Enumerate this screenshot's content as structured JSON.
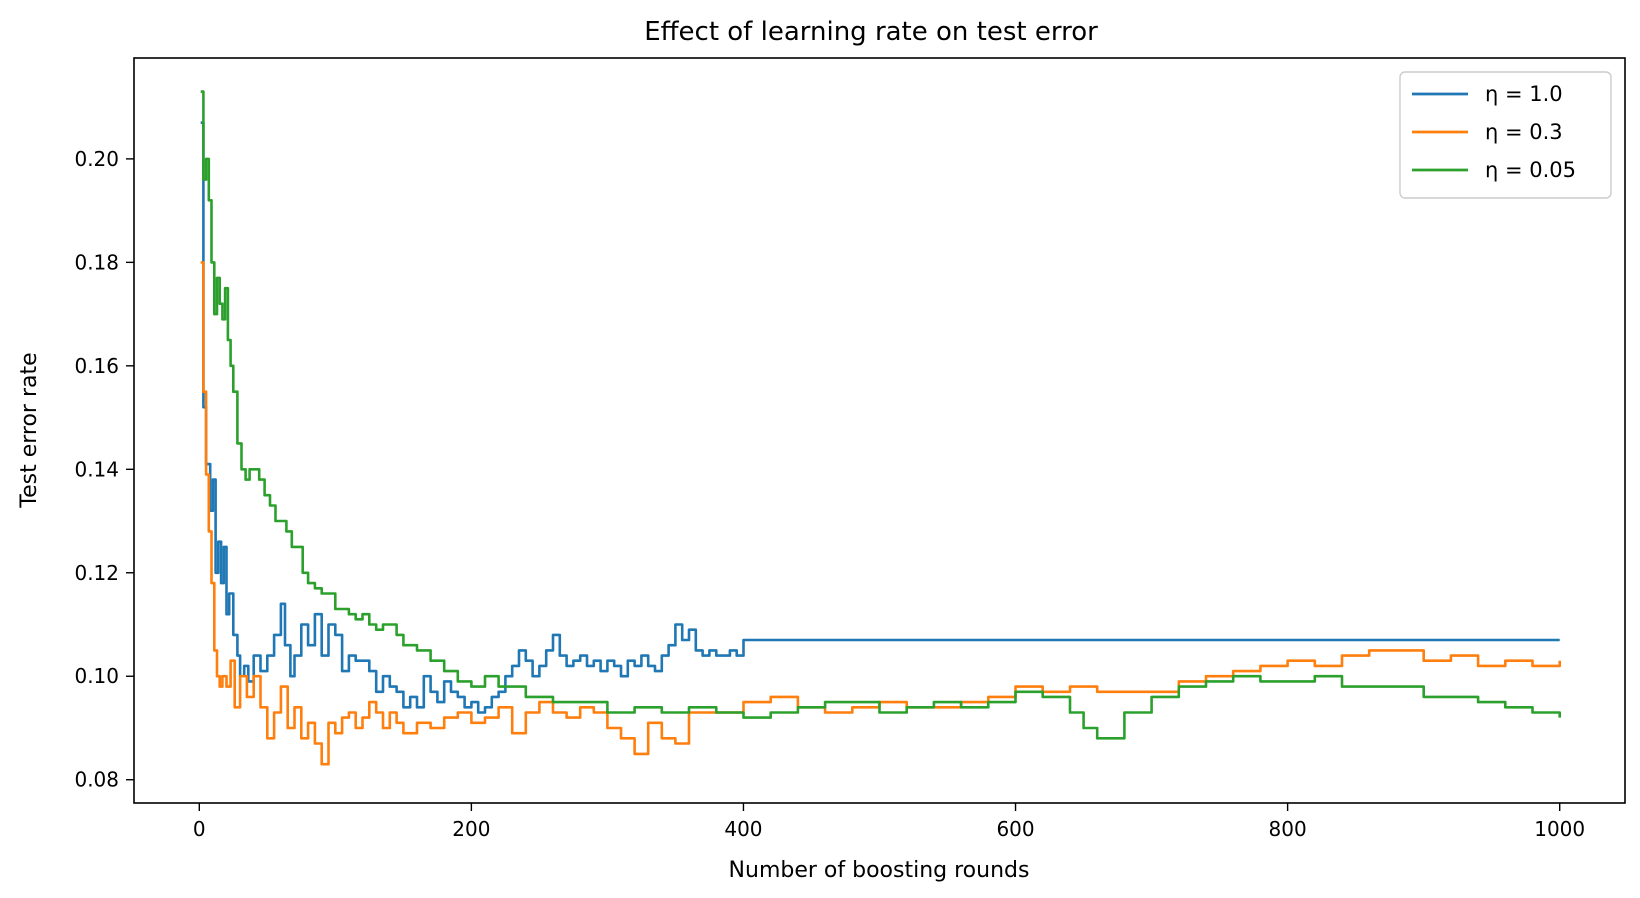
{
  "chart_data": {
    "type": "line",
    "title": "Effect of learning rate on test error",
    "xlabel": "Number of boosting rounds",
    "ylabel": "Test error rate",
    "xlim": [
      -48,
      1048
    ],
    "ylim": [
      0.0755,
      0.2195
    ],
    "xticks": [
      0,
      200,
      400,
      600,
      800,
      1000
    ],
    "yticks": [
      0.08,
      0.1,
      0.12,
      0.14,
      0.16,
      0.18,
      0.2
    ],
    "ytick_labels": [
      "0.08",
      "0.10",
      "0.12",
      "0.14",
      "0.16",
      "0.18",
      "0.20"
    ],
    "legend_position": "top-right",
    "series": [
      {
        "name": "η = 1.0",
        "color": "#1f77b4",
        "x": [
          1,
          3,
          5,
          8,
          10,
          12,
          14,
          16,
          18,
          20,
          22,
          25,
          28,
          30,
          33,
          36,
          40,
          45,
          50,
          55,
          60,
          63,
          67,
          70,
          75,
          80,
          85,
          90,
          95,
          100,
          105,
          110,
          115,
          120,
          125,
          130,
          135,
          140,
          145,
          150,
          155,
          160,
          165,
          170,
          175,
          180,
          185,
          190,
          195,
          200,
          205,
          210,
          215,
          220,
          225,
          230,
          235,
          240,
          245,
          250,
          255,
          260,
          265,
          270,
          275,
          280,
          285,
          290,
          295,
          300,
          305,
          310,
          315,
          320,
          325,
          330,
          335,
          340,
          345,
          350,
          355,
          360,
          365,
          370,
          375,
          380,
          385,
          390,
          395,
          400,
          450,
          500,
          600,
          700,
          800,
          900,
          1000
        ],
        "values": [
          0.207,
          0.152,
          0.141,
          0.132,
          0.138,
          0.12,
          0.126,
          0.118,
          0.125,
          0.112,
          0.116,
          0.108,
          0.104,
          0.1,
          0.102,
          0.099,
          0.104,
          0.101,
          0.104,
          0.108,
          0.114,
          0.106,
          0.1,
          0.104,
          0.11,
          0.106,
          0.112,
          0.104,
          0.11,
          0.108,
          0.101,
          0.104,
          0.103,
          0.103,
          0.101,
          0.097,
          0.1,
          0.098,
          0.097,
          0.094,
          0.096,
          0.094,
          0.1,
          0.097,
          0.095,
          0.099,
          0.097,
          0.096,
          0.094,
          0.095,
          0.093,
          0.094,
          0.096,
          0.097,
          0.1,
          0.102,
          0.105,
          0.103,
          0.1,
          0.102,
          0.105,
          0.108,
          0.104,
          0.102,
          0.103,
          0.104,
          0.102,
          0.103,
          0.101,
          0.103,
          0.102,
          0.1,
          0.103,
          0.102,
          0.104,
          0.102,
          0.101,
          0.104,
          0.106,
          0.11,
          0.107,
          0.109,
          0.105,
          0.104,
          0.105,
          0.104,
          0.104,
          0.105,
          0.104,
          0.107,
          0.107,
          0.107,
          0.107,
          0.107,
          0.107,
          0.107,
          0.107
        ]
      },
      {
        "name": "η = 0.3",
        "color": "#ff7f0e",
        "x": [
          1,
          3,
          5,
          7,
          9,
          11,
          13,
          15,
          17,
          20,
          23,
          26,
          30,
          35,
          40,
          45,
          50,
          55,
          60,
          65,
          70,
          75,
          80,
          85,
          90,
          95,
          100,
          105,
          110,
          115,
          120,
          125,
          130,
          135,
          140,
          145,
          150,
          160,
          170,
          180,
          190,
          200,
          210,
          220,
          230,
          240,
          250,
          260,
          270,
          280,
          290,
          300,
          310,
          320,
          330,
          340,
          350,
          360,
          380,
          400,
          420,
          440,
          460,
          480,
          500,
          520,
          540,
          560,
          580,
          600,
          620,
          640,
          660,
          680,
          700,
          720,
          740,
          760,
          780,
          800,
          820,
          840,
          860,
          880,
          900,
          920,
          940,
          960,
          980,
          1000
        ],
        "values": [
          0.18,
          0.155,
          0.139,
          0.128,
          0.118,
          0.105,
          0.1,
          0.098,
          0.1,
          0.098,
          0.103,
          0.094,
          0.1,
          0.096,
          0.1,
          0.094,
          0.088,
          0.093,
          0.098,
          0.09,
          0.094,
          0.088,
          0.091,
          0.087,
          0.083,
          0.091,
          0.089,
          0.092,
          0.093,
          0.09,
          0.092,
          0.095,
          0.093,
          0.09,
          0.093,
          0.091,
          0.089,
          0.091,
          0.09,
          0.092,
          0.093,
          0.091,
          0.092,
          0.094,
          0.089,
          0.093,
          0.095,
          0.093,
          0.092,
          0.094,
          0.093,
          0.09,
          0.088,
          0.085,
          0.091,
          0.088,
          0.087,
          0.093,
          0.093,
          0.095,
          0.096,
          0.094,
          0.093,
          0.094,
          0.095,
          0.094,
          0.094,
          0.095,
          0.096,
          0.098,
          0.097,
          0.098,
          0.097,
          0.097,
          0.097,
          0.099,
          0.1,
          0.101,
          0.102,
          0.103,
          0.102,
          0.104,
          0.105,
          0.105,
          0.103,
          0.104,
          0.102,
          0.103,
          0.102,
          0.103
        ]
      },
      {
        "name": "η = 0.05",
        "color": "#2ca02c",
        "x": [
          1,
          3,
          5,
          7,
          9,
          11,
          13,
          15,
          17,
          19,
          21,
          23,
          25,
          28,
          31,
          34,
          37,
          40,
          44,
          48,
          52,
          56,
          60,
          64,
          68,
          72,
          76,
          80,
          85,
          90,
          95,
          100,
          105,
          110,
          115,
          120,
          125,
          130,
          135,
          140,
          145,
          150,
          160,
          170,
          180,
          190,
          200,
          210,
          220,
          240,
          260,
          280,
          300,
          320,
          340,
          360,
          380,
          400,
          420,
          440,
          460,
          480,
          500,
          520,
          540,
          560,
          580,
          600,
          620,
          640,
          650,
          660,
          670,
          680,
          700,
          720,
          740,
          760,
          780,
          800,
          820,
          840,
          860,
          880,
          900,
          920,
          940,
          960,
          980,
          1000
        ],
        "values": [
          0.213,
          0.196,
          0.2,
          0.192,
          0.18,
          0.17,
          0.177,
          0.172,
          0.169,
          0.175,
          0.165,
          0.16,
          0.155,
          0.145,
          0.14,
          0.138,
          0.14,
          0.14,
          0.138,
          0.135,
          0.133,
          0.13,
          0.13,
          0.128,
          0.125,
          0.125,
          0.12,
          0.118,
          0.117,
          0.116,
          0.116,
          0.113,
          0.113,
          0.112,
          0.111,
          0.112,
          0.11,
          0.109,
          0.11,
          0.11,
          0.108,
          0.106,
          0.105,
          0.103,
          0.101,
          0.099,
          0.098,
          0.1,
          0.098,
          0.096,
          0.095,
          0.095,
          0.093,
          0.094,
          0.093,
          0.094,
          0.093,
          0.092,
          0.093,
          0.094,
          0.095,
          0.095,
          0.093,
          0.094,
          0.095,
          0.094,
          0.095,
          0.097,
          0.096,
          0.093,
          0.09,
          0.088,
          0.088,
          0.093,
          0.096,
          0.098,
          0.099,
          0.1,
          0.099,
          0.099,
          0.1,
          0.098,
          0.098,
          0.098,
          0.096,
          0.096,
          0.095,
          0.094,
          0.093,
          0.092
        ]
      }
    ]
  }
}
